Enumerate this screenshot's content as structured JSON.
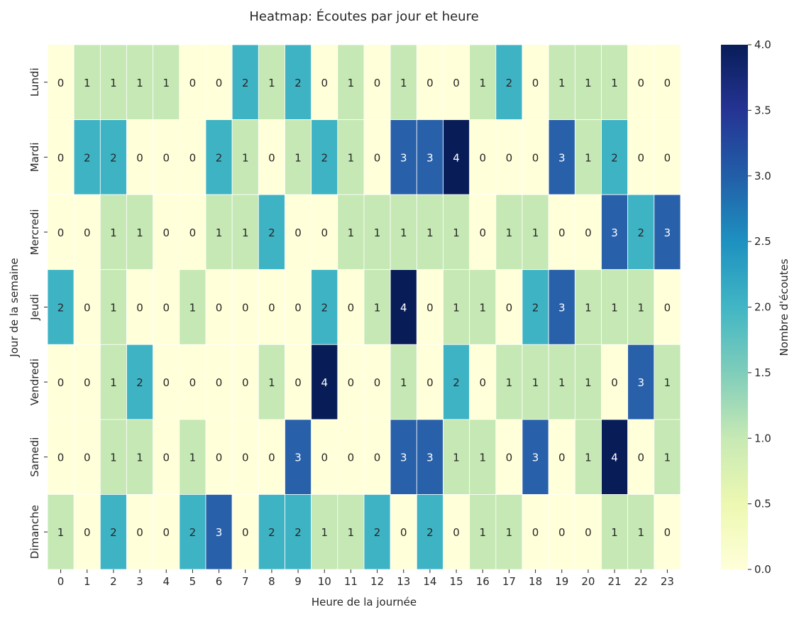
{
  "chart_data": {
    "type": "heatmap",
    "title": "Heatmap: Écoutes par jour et heure",
    "xlabel": "Heure de la journée",
    "ylabel": "Jour de la semaine",
    "x": [
      "0",
      "1",
      "2",
      "3",
      "4",
      "5",
      "6",
      "7",
      "8",
      "9",
      "10",
      "11",
      "12",
      "13",
      "14",
      "15",
      "16",
      "17",
      "18",
      "19",
      "20",
      "21",
      "22",
      "23"
    ],
    "y": [
      "Lundi",
      "Mardi",
      "Mercredi",
      "Jeudi",
      "Vendredi",
      "Samedi",
      "Dimanche"
    ],
    "values": [
      [
        0,
        1,
        1,
        1,
        1,
        0,
        0,
        2,
        1,
        2,
        0,
        1,
        0,
        1,
        0,
        0,
        1,
        2,
        0,
        1,
        1,
        1,
        0,
        0
      ],
      [
        0,
        2,
        2,
        0,
        0,
        0,
        2,
        1,
        0,
        1,
        2,
        1,
        0,
        3,
        3,
        4,
        0,
        0,
        0,
        3,
        1,
        2,
        0,
        0
      ],
      [
        0,
        0,
        1,
        1,
        0,
        0,
        1,
        1,
        2,
        0,
        0,
        1,
        1,
        1,
        1,
        1,
        0,
        1,
        1,
        0,
        0,
        3,
        2,
        3
      ],
      [
        2,
        0,
        1,
        0,
        0,
        1,
        0,
        0,
        0,
        0,
        2,
        0,
        1,
        4,
        0,
        1,
        1,
        0,
        2,
        3,
        1,
        1,
        1,
        0
      ],
      [
        0,
        0,
        1,
        2,
        0,
        0,
        0,
        0,
        1,
        0,
        4,
        0,
        0,
        1,
        0,
        2,
        0,
        1,
        1,
        1,
        1,
        0,
        3,
        1
      ],
      [
        0,
        0,
        1,
        1,
        0,
        1,
        0,
        0,
        0,
        3,
        0,
        0,
        0,
        3,
        3,
        1,
        1,
        0,
        3,
        0,
        1,
        4,
        0,
        1
      ],
      [
        1,
        0,
        2,
        0,
        0,
        2,
        3,
        0,
        2,
        2,
        1,
        1,
        2,
        0,
        2,
        0,
        1,
        1,
        0,
        0,
        0,
        1,
        1,
        0
      ]
    ],
    "colorbar": {
      "label": "Nombre d'écoutes",
      "range": [
        0,
        4
      ],
      "ticks": [
        "0.0",
        "0.5",
        "1.0",
        "1.5",
        "2.0",
        "2.5",
        "3.0",
        "3.5",
        "4.0"
      ]
    },
    "colormap": "YlGnBu",
    "colors": {
      "0": "#ffffd9",
      "1": "#c5e8b4",
      "2": "#3eb3c4",
      "3": "#2860aa",
      "4": "#081d58"
    },
    "annotations": true
  }
}
